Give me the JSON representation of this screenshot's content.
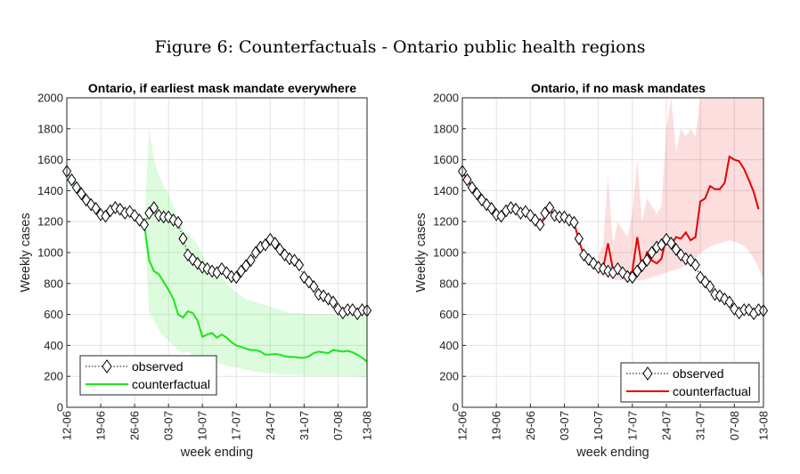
{
  "figure_title": "Figure 6: Counterfactuals - Ontario public health regions",
  "chart_data": [
    {
      "type": "line",
      "title": "Ontario, if earliest mask mandate everywhere",
      "xlabel": "week ending",
      "ylabel": "Weekly cases",
      "ylim": [
        0,
        2000
      ],
      "yticks": [
        0,
        200,
        400,
        600,
        800,
        1000,
        1200,
        1400,
        1600,
        1800,
        2000
      ],
      "xtick_labels": [
        "12-06",
        "19-06",
        "26-06",
        "03-07",
        "10-07",
        "17-07",
        "24-07",
        "31-07",
        "07-08",
        "13-08"
      ],
      "grid": true,
      "legend_position": "bottom-left",
      "days": [
        0,
        1,
        2,
        3,
        4,
        5,
        6,
        7,
        8,
        9,
        10,
        11,
        12,
        13,
        14,
        15,
        16,
        17,
        18,
        19,
        20,
        21,
        22,
        23,
        24,
        25,
        26,
        27,
        28,
        29,
        30,
        31,
        32,
        33,
        34,
        35,
        36,
        37,
        38,
        39,
        40,
        41,
        42,
        43,
        44,
        45,
        46,
        47,
        48,
        49,
        50,
        51,
        52,
        53,
        54,
        55,
        56,
        57,
        58,
        59,
        60,
        61,
        62
      ],
      "series": [
        {
          "name": "observed",
          "color": "#000000",
          "style": "dotted-diamond",
          "values": [
            1525,
            1470,
            1420,
            1380,
            1340,
            1310,
            1285,
            1245,
            1235,
            1270,
            1290,
            1280,
            1255,
            1265,
            1240,
            1210,
            1180,
            1255,
            1290,
            1240,
            1230,
            1230,
            1210,
            1195,
            1090,
            985,
            955,
            930,
            905,
            895,
            880,
            870,
            895,
            870,
            845,
            840,
            880,
            915,
            950,
            1000,
            1035,
            1050,
            1085,
            1060,
            1020,
            985,
            960,
            950,
            920,
            840,
            810,
            780,
            730,
            720,
            700,
            680,
            635,
            610,
            630,
            630,
            605,
            630,
            625
          ]
        },
        {
          "name": "counterfactual",
          "color": "#19e619",
          "style": "line",
          "values": [
            1525,
            1470,
            1420,
            1380,
            1340,
            1310,
            1285,
            1245,
            1235,
            1270,
            1290,
            1280,
            1255,
            1265,
            1240,
            1210,
            1180,
            950,
            880,
            860,
            810,
            760,
            700,
            600,
            580,
            620,
            610,
            560,
            455,
            470,
            480,
            450,
            470,
            450,
            420,
            400,
            390,
            380,
            370,
            370,
            360,
            340,
            340,
            345,
            340,
            330,
            325,
            325,
            320,
            320,
            330,
            350,
            360,
            355,
            350,
            370,
            365,
            360,
            365,
            355,
            340,
            320,
            295
          ],
          "band_lower": [
            null,
            null,
            null,
            null,
            null,
            null,
            null,
            null,
            null,
            null,
            null,
            null,
            null,
            null,
            null,
            null,
            1180,
            620,
            560,
            500,
            460,
            430,
            400,
            370,
            350,
            360,
            340,
            320,
            300,
            300,
            290,
            290,
            280,
            270,
            260,
            260,
            250,
            240,
            240,
            230,
            230,
            220,
            220,
            220,
            210,
            210,
            210,
            210,
            205,
            205,
            205,
            205,
            205,
            205,
            205,
            205,
            205,
            205,
            205,
            200,
            200,
            195,
            190
          ],
          "band_upper": [
            null,
            null,
            null,
            null,
            null,
            null,
            null,
            null,
            null,
            null,
            null,
            null,
            null,
            null,
            null,
            null,
            1180,
            1800,
            1600,
            1500,
            1430,
            1380,
            1300,
            1200,
            1150,
            1120,
            1090,
            1050,
            980,
            930,
            900,
            870,
            840,
            800,
            770,
            740,
            720,
            700,
            690,
            680,
            670,
            660,
            650,
            640,
            630,
            620,
            610,
            610,
            610,
            605,
            600,
            600,
            600,
            600,
            600,
            600,
            600,
            600,
            600,
            600,
            600,
            600,
            590
          ]
        }
      ]
    },
    {
      "type": "line",
      "title": "Ontario, if no mask mandates",
      "xlabel": "week ending",
      "ylabel": "Weekly cases",
      "ylim": [
        0,
        2000
      ],
      "yticks": [
        0,
        200,
        400,
        600,
        800,
        1000,
        1200,
        1400,
        1600,
        1800,
        2000
      ],
      "xtick_labels": [
        "12-06",
        "19-06",
        "26-06",
        "03-07",
        "10-07",
        "17-07",
        "24-07",
        "31-07",
        "07-08",
        "13-08"
      ],
      "grid": true,
      "legend_position": "bottom-right",
      "days": [
        0,
        1,
        2,
        3,
        4,
        5,
        6,
        7,
        8,
        9,
        10,
        11,
        12,
        13,
        14,
        15,
        16,
        17,
        18,
        19,
        20,
        21,
        22,
        23,
        24,
        25,
        26,
        27,
        28,
        29,
        30,
        31,
        32,
        33,
        34,
        35,
        36,
        37,
        38,
        39,
        40,
        41,
        42,
        43,
        44,
        45,
        46,
        47,
        48,
        49,
        50,
        51,
        52,
        53,
        54,
        55,
        56,
        57,
        58,
        59,
        60,
        61,
        62
      ],
      "series": [
        {
          "name": "observed",
          "color": "#000000",
          "style": "dotted-diamond",
          "values": [
            1525,
            1470,
            1420,
            1380,
            1340,
            1310,
            1285,
            1245,
            1235,
            1270,
            1290,
            1280,
            1255,
            1265,
            1240,
            1210,
            1180,
            1255,
            1290,
            1240,
            1230,
            1230,
            1210,
            1195,
            1090,
            985,
            955,
            930,
            905,
            895,
            880,
            870,
            895,
            870,
            845,
            840,
            880,
            915,
            950,
            1000,
            1035,
            1050,
            1085,
            1060,
            1020,
            985,
            960,
            950,
            920,
            840,
            810,
            780,
            730,
            720,
            700,
            680,
            635,
            610,
            630,
            630,
            605,
            630,
            625
          ]
        },
        {
          "name": "counterfactual",
          "color": "#e60000",
          "style": "line",
          "values": [
            1525,
            1470,
            1420,
            1380,
            1340,
            1310,
            1285,
            1245,
            1235,
            1270,
            1290,
            1280,
            1255,
            1265,
            1240,
            1210,
            1180,
            1225,
            1280,
            1230,
            1240,
            1240,
            1220,
            1190,
            1080,
            980,
            950,
            930,
            900,
            900,
            1060,
            890,
            910,
            880,
            850,
            880,
            1100,
            900,
            1000,
            950,
            930,
            960,
            1100,
            1050,
            1100,
            1090,
            1130,
            1080,
            1100,
            1330,
            1350,
            1430,
            1410,
            1410,
            1450,
            1620,
            1600,
            1590,
            1540,
            1470,
            1390,
            1280,
            null
          ],
          "band_lower": [
            null,
            null,
            null,
            null,
            null,
            null,
            null,
            null,
            null,
            null,
            null,
            null,
            null,
            null,
            null,
            null,
            null,
            null,
            null,
            null,
            null,
            null,
            null,
            null,
            null,
            null,
            null,
            null,
            860,
            850,
            840,
            830,
            820,
            820,
            810,
            810,
            820,
            820,
            830,
            840,
            850,
            860,
            870,
            880,
            890,
            900,
            920,
            940,
            960,
            1000,
            1020,
            1040,
            1050,
            1060,
            1070,
            1080,
            1070,
            1060,
            1040,
            1010,
            960,
            900,
            820
          ],
          "band_upper": [
            null,
            null,
            null,
            null,
            null,
            null,
            null,
            null,
            null,
            null,
            null,
            null,
            null,
            null,
            null,
            null,
            null,
            null,
            null,
            null,
            null,
            null,
            null,
            null,
            null,
            null,
            null,
            null,
            980,
            1050,
            1500,
            1050,
            1200,
            1150,
            1100,
            1250,
            1600,
            1200,
            1350,
            1300,
            1250,
            1300,
            1800,
            2000,
            1650,
            1800,
            1750,
            1800,
            1750,
            2000,
            2000,
            2000,
            2000,
            2000,
            2000,
            2000,
            2000,
            2000,
            2000,
            2000,
            2000,
            2000,
            2000
          ]
        }
      ]
    }
  ]
}
